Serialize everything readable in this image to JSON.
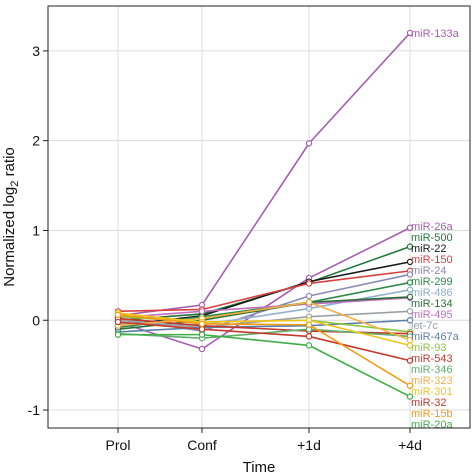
{
  "chart_data": {
    "type": "line",
    "title": "",
    "xlabel": "Time",
    "ylabel_main": "Normalized log",
    "ylabel_sub": "2",
    "ylabel_tail": " ratio",
    "categories": [
      "Prol",
      "Conf",
      "+1d",
      "+4d"
    ],
    "ylim": [
      -1.2,
      3.5
    ],
    "yticks": [
      -1,
      0,
      1,
      2,
      3
    ],
    "grid": true,
    "legend": "direct labels at right end of lines",
    "series": [
      {
        "name": "miR-133a",
        "color": "#a65fb0",
        "values": [
          0.05,
          0.17,
          1.97,
          3.2
        ]
      },
      {
        "name": "miR-26a",
        "color": "#a65fb0",
        "values": [
          -0.02,
          -0.32,
          0.47,
          1.03
        ]
      },
      {
        "name": "miR-500",
        "color": "#1f7a3a",
        "values": [
          0.0,
          0.07,
          0.42,
          0.82
        ]
      },
      {
        "name": "miR-22",
        "color": "#1a1a1a",
        "values": [
          -0.06,
          0.05,
          0.43,
          0.65
        ]
      },
      {
        "name": "miR-150",
        "color": "#d94141",
        "values": [
          0.1,
          0.12,
          0.41,
          0.55
        ]
      },
      {
        "name": "miR-24",
        "color": "#8a8ab8",
        "values": [
          0.02,
          -0.12,
          0.27,
          0.51
        ]
      },
      {
        "name": "miR-299",
        "color": "#2c8a4a",
        "values": [
          -0.08,
          0.04,
          0.2,
          0.42
        ]
      },
      {
        "name": "miR-486",
        "color": "#8fb0d0",
        "values": [
          -0.04,
          -0.05,
          0.13,
          0.34
        ]
      },
      {
        "name": "miR-495",
        "color": "#c070c0",
        "values": [
          0.03,
          0.1,
          0.18,
          0.25
        ]
      },
      {
        "name": "miR-134",
        "color": "#2a6e3a",
        "values": [
          -0.1,
          0.0,
          0.2,
          0.26
        ]
      },
      {
        "name": "let-7c",
        "color": "#9aa0a6",
        "values": [
          0.0,
          -0.08,
          0.04,
          0.1
        ]
      },
      {
        "name": "miR-467a",
        "color": "#5c7fa8",
        "values": [
          -0.13,
          -0.08,
          -0.06,
          0.0
        ]
      },
      {
        "name": "miR-93",
        "color": "#8cc63f",
        "values": [
          0.04,
          -0.02,
          0.0,
          -0.13
        ]
      },
      {
        "name": "miR-543",
        "color": "#c0392b",
        "values": [
          0.02,
          -0.06,
          -0.12,
          -0.15
        ]
      },
      {
        "name": "miR-346",
        "color": "#5fae6f",
        "values": [
          -0.15,
          -0.2,
          -0.1,
          -0.18
        ]
      },
      {
        "name": "miR-323",
        "color": "#f5b041",
        "values": [
          -0.06,
          0.02,
          0.2,
          -0.22
        ]
      },
      {
        "name": "miR-301",
        "color": "#f0c419",
        "values": [
          0.08,
          -0.02,
          0.0,
          -0.28
        ]
      },
      {
        "name": "miR-32",
        "color": "#c0392b",
        "values": [
          -0.02,
          -0.1,
          -0.18,
          -0.45
        ]
      },
      {
        "name": "miR-15b",
        "color": "#f39c12",
        "values": [
          0.06,
          -0.04,
          -0.05,
          -0.73
        ]
      },
      {
        "name": "miR-20a",
        "color": "#3fae49",
        "values": [
          -0.16,
          -0.16,
          -0.28,
          -0.85
        ]
      }
    ]
  }
}
